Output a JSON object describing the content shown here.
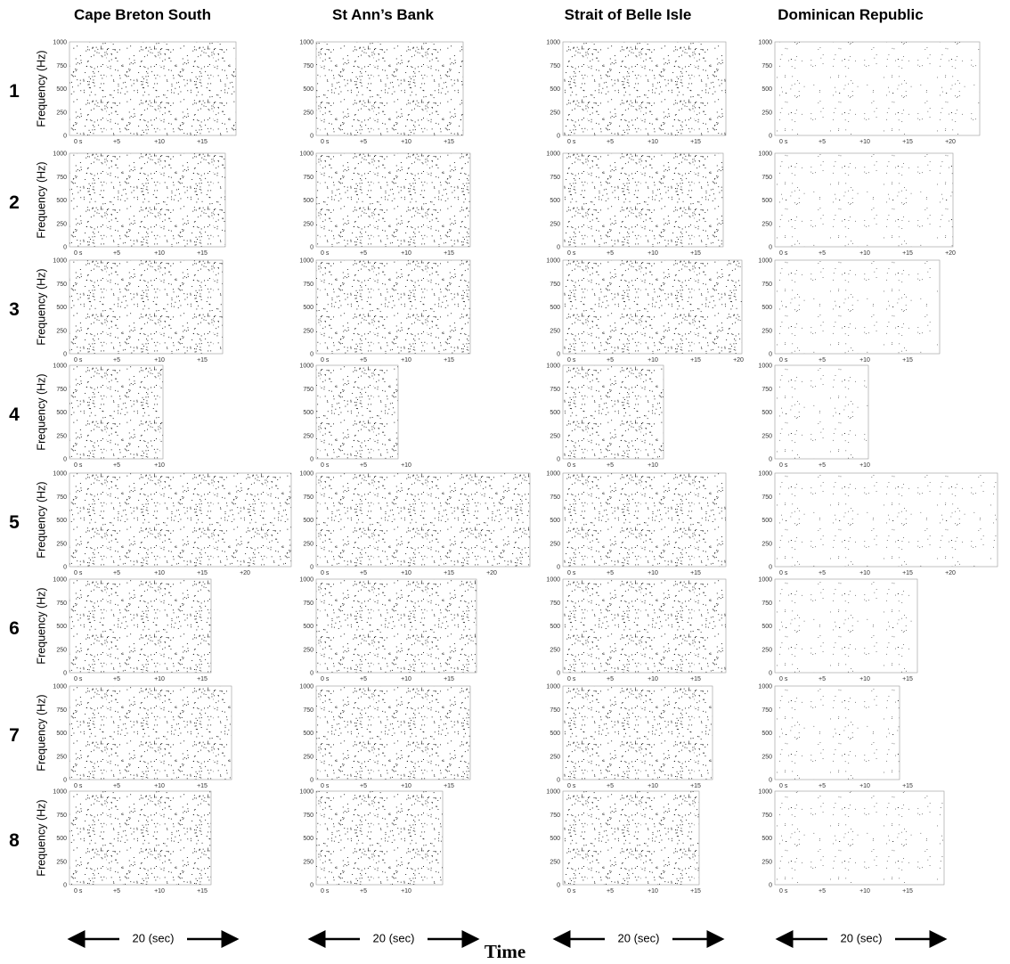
{
  "columns": [
    "Cape Breton South",
    "St Ann’s Bank",
    "Strait of Belle Isle",
    "Dominican Republic"
  ],
  "rows": [
    "1",
    "2",
    "3",
    "4",
    "5",
    "6",
    "7",
    "8"
  ],
  "y_axis_label": "Frequency (Hz)",
  "y_ticks": [
    "0",
    "250",
    "500",
    "750",
    "1000"
  ],
  "panels": [
    [
      [
        "0 s",
        "+5",
        "+10",
        "+15"
      ],
      [
        "0 s",
        "+5",
        "+10",
        "+15"
      ],
      [
        "0 s",
        "+5",
        "+10",
        "+15"
      ],
      [
        "0 s",
        "+5",
        "+10",
        "+15",
        "+20"
      ]
    ],
    [
      [
        "0 s",
        "+5",
        "+10",
        "+15"
      ],
      [
        "0 s",
        "+5",
        "+10",
        "+15"
      ],
      [
        "0 s",
        "+5",
        "+10",
        "+15"
      ],
      [
        "0 s",
        "+5",
        "+10",
        "+15",
        "+20"
      ]
    ],
    [
      [
        "0 s",
        "+5",
        "+10",
        "+15"
      ],
      [
        "0 s",
        "+5",
        "+10",
        "+15"
      ],
      [
        "0 s",
        "+5",
        "+10",
        "+15",
        "+20"
      ],
      [
        "0 s",
        "+5",
        "+10",
        "+15"
      ]
    ],
    [
      [
        "0 s",
        "+5",
        "+10"
      ],
      [
        "0 s",
        "+5",
        "+10"
      ],
      [
        "0 s",
        "+5",
        "+10"
      ],
      [
        "0 s",
        "+5",
        "+10"
      ]
    ],
    [
      [
        "0 s",
        "+5",
        "+10",
        "+15",
        "+20"
      ],
      [
        "0 s",
        "+5",
        "+10",
        "+15",
        "+20"
      ],
      [
        "0 s",
        "+5",
        "+10",
        "+15"
      ],
      [
        "0 s",
        "+5",
        "+10",
        "+15",
        "+20"
      ]
    ],
    [
      [
        "0 s",
        "+5",
        "+10",
        "+15"
      ],
      [
        "0 s",
        "+5",
        "+10",
        "+15"
      ],
      [
        "0 s",
        "+5",
        "+10",
        "+15"
      ],
      [
        "0 s",
        "+5",
        "+10",
        "+15"
      ]
    ],
    [
      [
        "0 s",
        "+5",
        "+10",
        "+15"
      ],
      [
        "0 s",
        "+5",
        "+10",
        "+15"
      ],
      [
        "0 s",
        "+5",
        "+10",
        "+15"
      ],
      [
        "0 s",
        "+5",
        "+10",
        "+15"
      ]
    ],
    [
      [
        "0 s",
        "+5",
        "+10",
        "+15"
      ],
      [
        "0 s",
        "+5",
        "+10"
      ],
      [
        "0 s",
        "+5",
        "+10",
        "+15"
      ],
      [
        "0 s",
        "+5",
        "+10",
        "+15"
      ]
    ]
  ],
  "scale_label": "20 (sec)",
  "x_axis_label": "Time"
}
